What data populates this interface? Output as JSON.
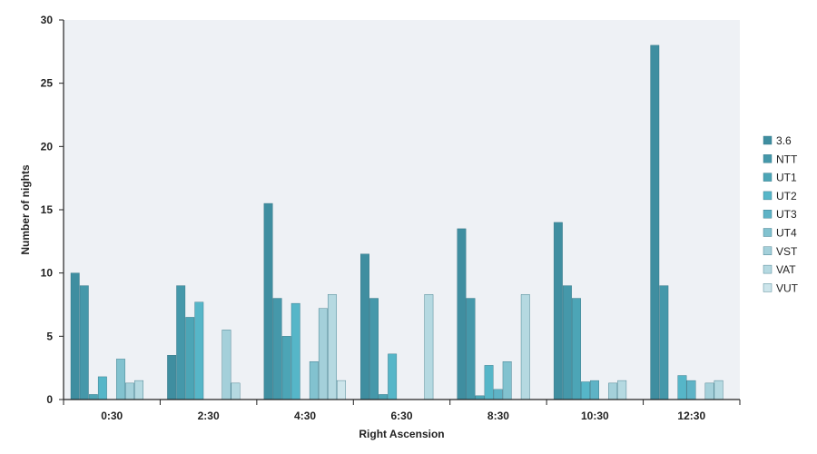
{
  "chart_data": {
    "type": "bar",
    "title": "",
    "xlabel": "Right Ascension",
    "ylabel": "Number of nights",
    "ylim": [
      0,
      30
    ],
    "yticks": [
      0,
      5,
      10,
      15,
      20,
      25,
      30
    ],
    "grid": false,
    "legend_position": "right",
    "categories": [
      "0:30",
      "2:30",
      "4:30",
      "6:30",
      "8:30",
      "10:30",
      "12:30"
    ],
    "series": [
      {
        "name": "3.6",
        "color": "#3f8ea0",
        "values": [
          10,
          3.5,
          15.5,
          11.5,
          13.5,
          14,
          28
        ]
      },
      {
        "name": "NTT",
        "color": "#4598aa",
        "values": [
          9,
          9,
          8,
          8,
          8,
          9,
          9
        ]
      },
      {
        "name": "UT1",
        "color": "#4ca5b6",
        "values": [
          0.4,
          6.5,
          5,
          0.4,
          0.3,
          8,
          0
        ]
      },
      {
        "name": "UT2",
        "color": "#56b6c8",
        "values": [
          1.8,
          7.7,
          7.6,
          3.6,
          2.7,
          1.4,
          1.9
        ]
      },
      {
        "name": "UT3",
        "color": "#5fb3c6",
        "values": [
          0,
          0,
          0,
          0,
          0.8,
          1.5,
          1.5
        ]
      },
      {
        "name": "UT4",
        "color": "#82c2cf",
        "values": [
          3.2,
          0,
          3,
          0,
          3,
          0,
          0
        ]
      },
      {
        "name": "VST",
        "color": "#a4d0da",
        "values": [
          1.3,
          5.5,
          7.2,
          0,
          0,
          1.3,
          1.3
        ]
      },
      {
        "name": "VAT",
        "color": "#b5d9e1",
        "values": [
          1.5,
          1.3,
          8.3,
          8.3,
          8.3,
          1.5,
          1.5
        ]
      },
      {
        "name": "VUT",
        "color": "#cde5eb",
        "values": [
          0,
          0,
          1.5,
          0,
          0,
          0,
          0
        ]
      }
    ]
  }
}
